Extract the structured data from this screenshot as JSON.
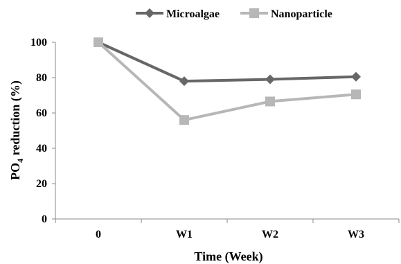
{
  "chart_data": {
    "type": "line",
    "categories": [
      "0",
      "W1",
      "W2",
      "W3"
    ],
    "series": [
      {
        "name": "Microalgae",
        "values": [
          100,
          78,
          79,
          80.5
        ],
        "color": "#676767",
        "marker": "diamond"
      },
      {
        "name": "Nanoparticle",
        "values": [
          100,
          56,
          66.5,
          70.5
        ],
        "color": "#b7b7b7",
        "marker": "square"
      }
    ],
    "title": "",
    "xlabel": "Time (Week)",
    "ylabel_main": "PO",
    "ylabel_sub": "4",
    "ylabel_rest": " reduction (%)",
    "ylim": [
      0,
      100
    ],
    "yticks": [
      "0",
      "20",
      "40",
      "60",
      "80",
      "100"
    ],
    "grid": false,
    "legend_position": "top"
  }
}
